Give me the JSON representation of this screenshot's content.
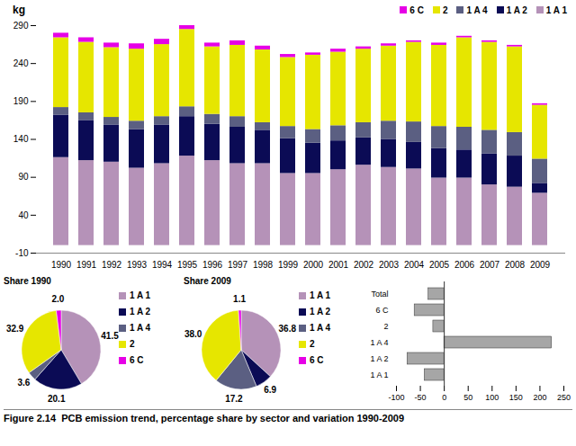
{
  "caption": "Figure 2.14  PCB emission trend, percentage share by sector and variation 1990-2009",
  "chart_data": [
    {
      "type": "bar",
      "stacked": true,
      "legend": "top-right",
      "grid": false,
      "y_label": "kg",
      "categories": [
        "1990",
        "1991",
        "1992",
        "1993",
        "1994",
        "1995",
        "1996",
        "1997",
        "1998",
        "1999",
        "2000",
        "2001",
        "2002",
        "2003",
        "2004",
        "2005",
        "2006",
        "2007",
        "2008",
        "2009"
      ],
      "ylim": [
        -10,
        290
      ],
      "yticks": [
        -10,
        40,
        90,
        140,
        190,
        240,
        290
      ],
      "series": [
        {
          "name": "1 A 1",
          "color": "#b592b8",
          "values": [
            116,
            112,
            110,
            102,
            108,
            118,
            112,
            108,
            108,
            95,
            95,
            100,
            106,
            103,
            101,
            89,
            89,
            80,
            77,
            69
          ]
        },
        {
          "name": "1 A 2",
          "color": "#0b0b55",
          "values": [
            56,
            53,
            49,
            51,
            51,
            52,
            48,
            48,
            44,
            46,
            40,
            38,
            36,
            37,
            35,
            39,
            37,
            41,
            41,
            13
          ]
        },
        {
          "name": "1 A 4",
          "color": "#5b5f82",
          "values": [
            10,
            10,
            10,
            11,
            11,
            13,
            13,
            14,
            10,
            16,
            18,
            20,
            20,
            24,
            27,
            29,
            30,
            31,
            31,
            32
          ]
        },
        {
          "name": "2",
          "color": "#e6e600",
          "values": [
            92,
            93,
            92,
            95,
            95,
            102,
            89,
            94,
            96,
            91,
            98,
            97,
            97,
            99,
            105,
            107,
            118,
            116,
            113,
            71
          ]
        },
        {
          "name": "6 C",
          "color": "#e600e6",
          "values": [
            6,
            6,
            6,
            7,
            7,
            5,
            5,
            6,
            5,
            4,
            3,
            4,
            3,
            3,
            2,
            3,
            2,
            2,
            2,
            2
          ]
        }
      ]
    },
    {
      "type": "pie",
      "title": "Share 1990",
      "data_labels": true,
      "categories": [
        "1 A 1",
        "1 A 2",
        "1 A 4",
        "2",
        "6 C"
      ],
      "values": [
        41.5,
        20.1,
        3.6,
        32.9,
        2.0
      ],
      "value_labels": [
        "41.5",
        "20.1",
        "3.6",
        "32.9",
        "2.0"
      ],
      "colors": [
        "#b592b8",
        "#0b0b55",
        "#5b5f82",
        "#e6e600",
        "#e600e6"
      ]
    },
    {
      "type": "pie",
      "title": "Share 2009",
      "data_labels": true,
      "categories": [
        "1 A 1",
        "1 A 2",
        "1 A 4",
        "2",
        "6 C"
      ],
      "values": [
        36.8,
        6.9,
        17.2,
        38.0,
        1.1
      ],
      "value_labels": [
        "36.8",
        "6.9",
        "17.2",
        "38.0",
        "1.1"
      ],
      "colors": [
        "#b592b8",
        "#0b0b55",
        "#5b5f82",
        "#e6e600",
        "#e600e6"
      ]
    },
    {
      "type": "bar",
      "orientation": "horizontal",
      "grid": false,
      "color": "#a6a6a6",
      "categories": [
        "Total",
        "6 C",
        "2",
        "1 A 4",
        "1 A 2",
        "1 A 1"
      ],
      "values": [
        -33,
        -62,
        -23,
        225,
        -77,
        -41
      ],
      "xlim": [
        -100,
        250
      ],
      "xticks": [
        -100,
        -50,
        0,
        50,
        100,
        150,
        200,
        250
      ]
    }
  ]
}
